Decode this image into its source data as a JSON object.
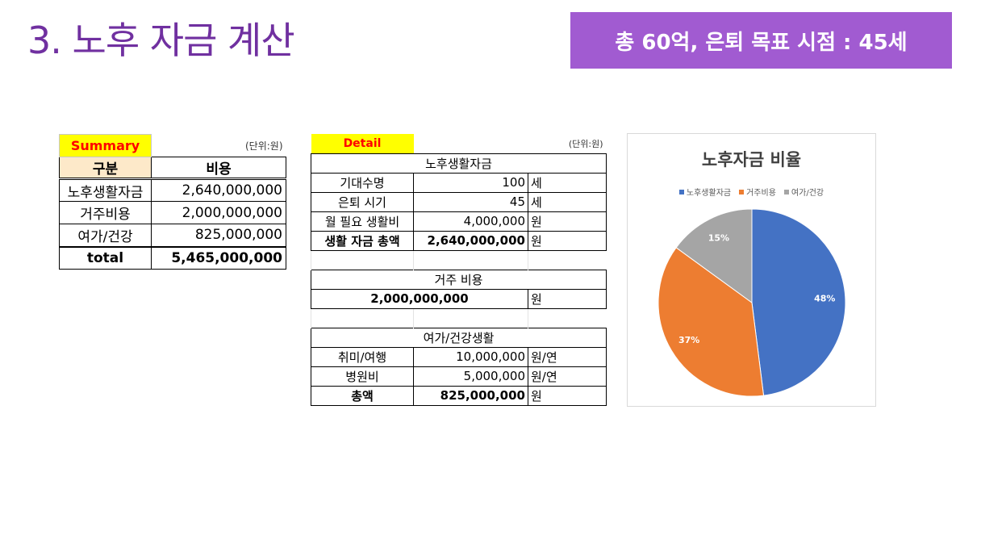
{
  "page": {
    "title": "3. 노후 자금 계산",
    "banner": "총 60억, 은퇴 목표 시점 : 45세"
  },
  "summary": {
    "label": "Summary",
    "unit": "(단위:원)",
    "headers": [
      "구분",
      "비용"
    ],
    "rows": [
      {
        "label": "노후생활자금",
        "value": "2,640,000,000"
      },
      {
        "label": "거주비용",
        "value": "2,000,000,000"
      },
      {
        "label": "여가/건강",
        "value": "825,000,000"
      }
    ],
    "total": {
      "label": "total",
      "value": "5,465,000,000"
    }
  },
  "detail": {
    "label": "Detail",
    "unit": "(단위:원)",
    "living": {
      "title": "노후생활자금",
      "rows": [
        {
          "label": "기대수명",
          "value": "100",
          "unit": "세"
        },
        {
          "label": "은퇴 시기",
          "value": "45",
          "unit": "세"
        },
        {
          "label": "월 필요 생활비",
          "value": "4,000,000",
          "unit": "원"
        },
        {
          "label": "생활 자금 총액",
          "value": "2,640,000,000",
          "unit": "원"
        }
      ]
    },
    "housing": {
      "title": "거주 비용",
      "value": "2,000,000,000",
      "unit": "원"
    },
    "leisure": {
      "title": "여가/건강생활",
      "rows": [
        {
          "label": "취미/여행",
          "value": "10,000,000",
          "unit": "원/연"
        },
        {
          "label": "병원비",
          "value": "5,000,000",
          "unit": "원/연"
        },
        {
          "label": "총액",
          "value": "825,000,000",
          "unit": "원"
        }
      ]
    }
  },
  "chart_data": {
    "type": "pie",
    "title": "노후자금 비율",
    "categories": [
      "노후생활자금",
      "거주비용",
      "여가/건강"
    ],
    "values": [
      48,
      37,
      15
    ],
    "labels": [
      "48%",
      "37%",
      "15%"
    ],
    "colors": [
      "#4472c4",
      "#ed7d31",
      "#a5a5a5"
    ],
    "legend": "top"
  }
}
